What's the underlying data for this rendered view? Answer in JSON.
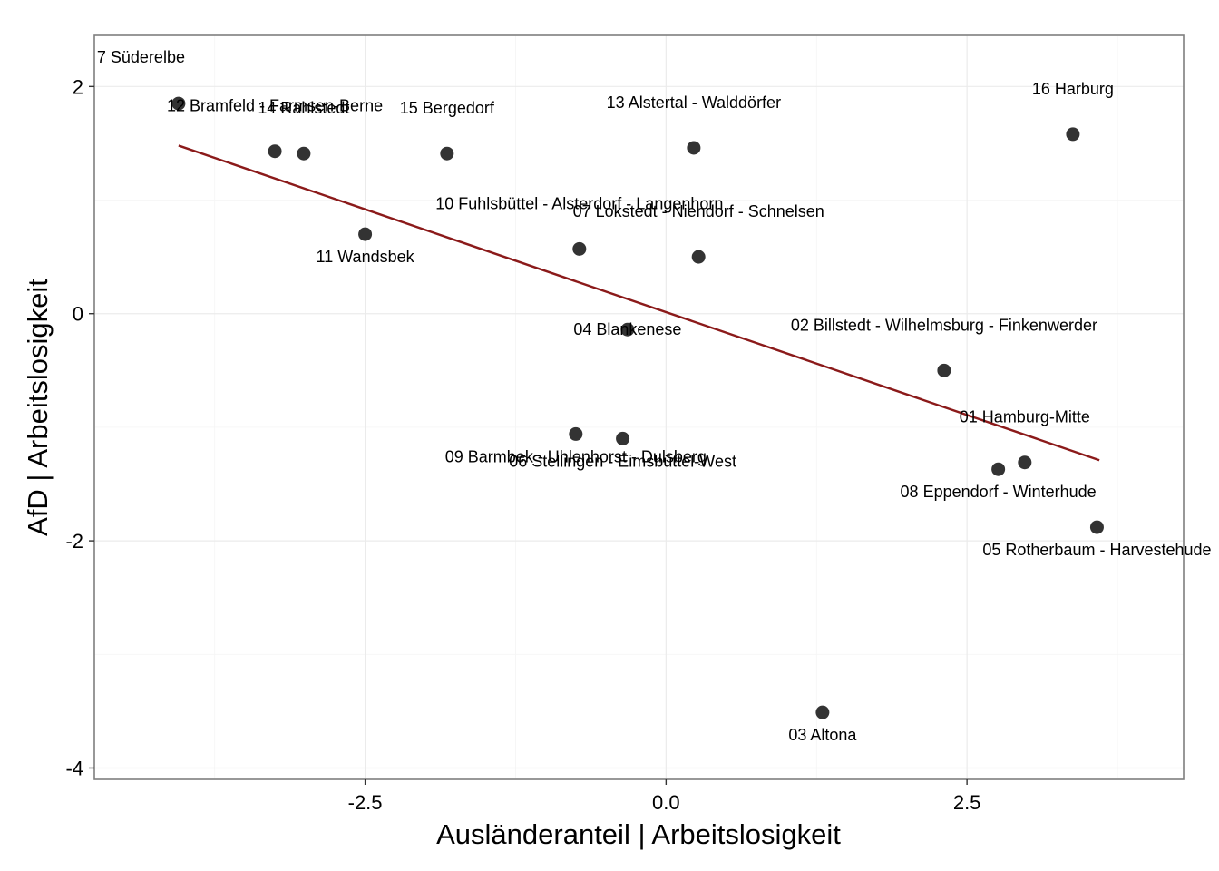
{
  "chart_data": {
    "type": "scatter",
    "title": "",
    "xlabel": "Ausländeranteil | Arbeitslosigkeit",
    "ylabel": "AfD | Arbeitslosigkeit",
    "xlim": [
      -4.75,
      4.3
    ],
    "ylim": [
      -4.1,
      2.45
    ],
    "x_ticks": [
      -2.5,
      0.0,
      2.5
    ],
    "x_tick_labels": [
      "-2.5",
      "0.0",
      "2.5"
    ],
    "y_ticks": [
      -4,
      -2,
      0,
      2
    ],
    "y_tick_labels": [
      "-4",
      "-2",
      "0",
      "2"
    ],
    "grid": true,
    "legend": "none",
    "point_color": "#333333",
    "trend_line": {
      "color": "#8b1a1a",
      "x": [
        -4.05,
        3.6
      ],
      "y": [
        1.48,
        -1.29
      ]
    },
    "points": [
      {
        "label": "7 Süderelbe",
        "x": -4.05,
        "y": 1.85,
        "label_pos": "top-left-far"
      },
      {
        "label": "12 Bramfeld - Farmsen-Berne",
        "x": -3.25,
        "y": 1.43,
        "label_pos": "above"
      },
      {
        "label": "14 Rahlstedt",
        "x": -3.01,
        "y": 1.41,
        "label_pos": "above"
      },
      {
        "label": "15 Bergedorf",
        "x": -1.82,
        "y": 1.41,
        "label_pos": "above"
      },
      {
        "label": "13 Alstertal - Walddörfer",
        "x": 0.23,
        "y": 1.46,
        "label_pos": "above"
      },
      {
        "label": "16 Harburg",
        "x": 3.38,
        "y": 1.58,
        "label_pos": "above"
      },
      {
        "label": "11 Wandsbek",
        "x": -2.5,
        "y": 0.7,
        "label_pos": "below"
      },
      {
        "label": "10 Fuhlsbüttel - Alsterdorf - Langenhorn",
        "x": -0.72,
        "y": 0.57,
        "label_pos": "above"
      },
      {
        "label": "07 Lokstedt - Niendorf - Schnelsen",
        "x": 0.27,
        "y": 0.5,
        "label_pos": "above"
      },
      {
        "label": "04 Blankenese",
        "x": -0.32,
        "y": -0.14,
        "label_pos": "center"
      },
      {
        "label": "02 Billstedt - Wilhelmsburg - Finkenwerder",
        "x": 2.31,
        "y": -0.5,
        "label_pos": "above"
      },
      {
        "label": "09 Barmbek - Uhlenhorst - Dulsberg",
        "x": -0.75,
        "y": -1.06,
        "label_pos": "below"
      },
      {
        "label": "06 Stellingen - Eimsbüttel-West",
        "x": -0.36,
        "y": -1.1,
        "label_pos": "below"
      },
      {
        "label": "01 Hamburg-Mitte",
        "x": 2.98,
        "y": -1.31,
        "label_pos": "above"
      },
      {
        "label": "08 Eppendorf - Winterhude",
        "x": 2.76,
        "y": -1.37,
        "label_pos": "below"
      },
      {
        "label": "05 Rotherbaum - Harvestehude",
        "x": 3.58,
        "y": -1.88,
        "label_pos": "below"
      },
      {
        "label": "03 Altona",
        "x": 1.3,
        "y": -3.51,
        "label_pos": "below"
      }
    ]
  }
}
